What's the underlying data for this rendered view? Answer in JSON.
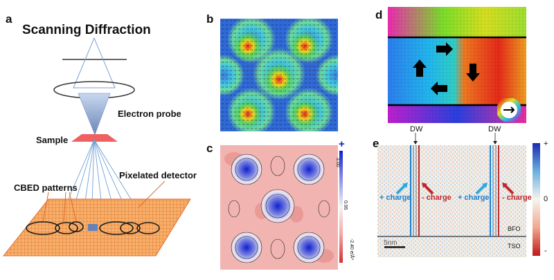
{
  "panel_a": {
    "letter": "a",
    "title": "Scanning Diffraction",
    "electron_probe": "Electron probe",
    "sample": "Sample",
    "cbed": "CBED patterns",
    "detector": "Pixelated detector"
  },
  "panel_b": {
    "letter": "b"
  },
  "panel_c": {
    "letter": "c",
    "plus": "+",
    "scale_top": "3.00",
    "scale_mid": "0.95",
    "scale_bottom": "-2.40 e/Å³"
  },
  "panel_d": {
    "letter": "d"
  },
  "panel_e": {
    "letter": "e",
    "dw_left": "DW",
    "dw_right": "DW",
    "plus_charge_1": "+ charge",
    "minus_charge_1": "- charge",
    "plus_charge_2": "+ charge",
    "minus_charge_2": "- charge",
    "bfo": "BFO",
    "tso": "TSO",
    "scalebar": "5nm",
    "cb_plus": "+",
    "cb_zero": "0",
    "cb_minus": "-"
  },
  "colors": {
    "sample": "#f06060",
    "detector": "#f4a65a",
    "plus_charge": "#1a7fd0",
    "minus_charge": "#c0282a"
  }
}
